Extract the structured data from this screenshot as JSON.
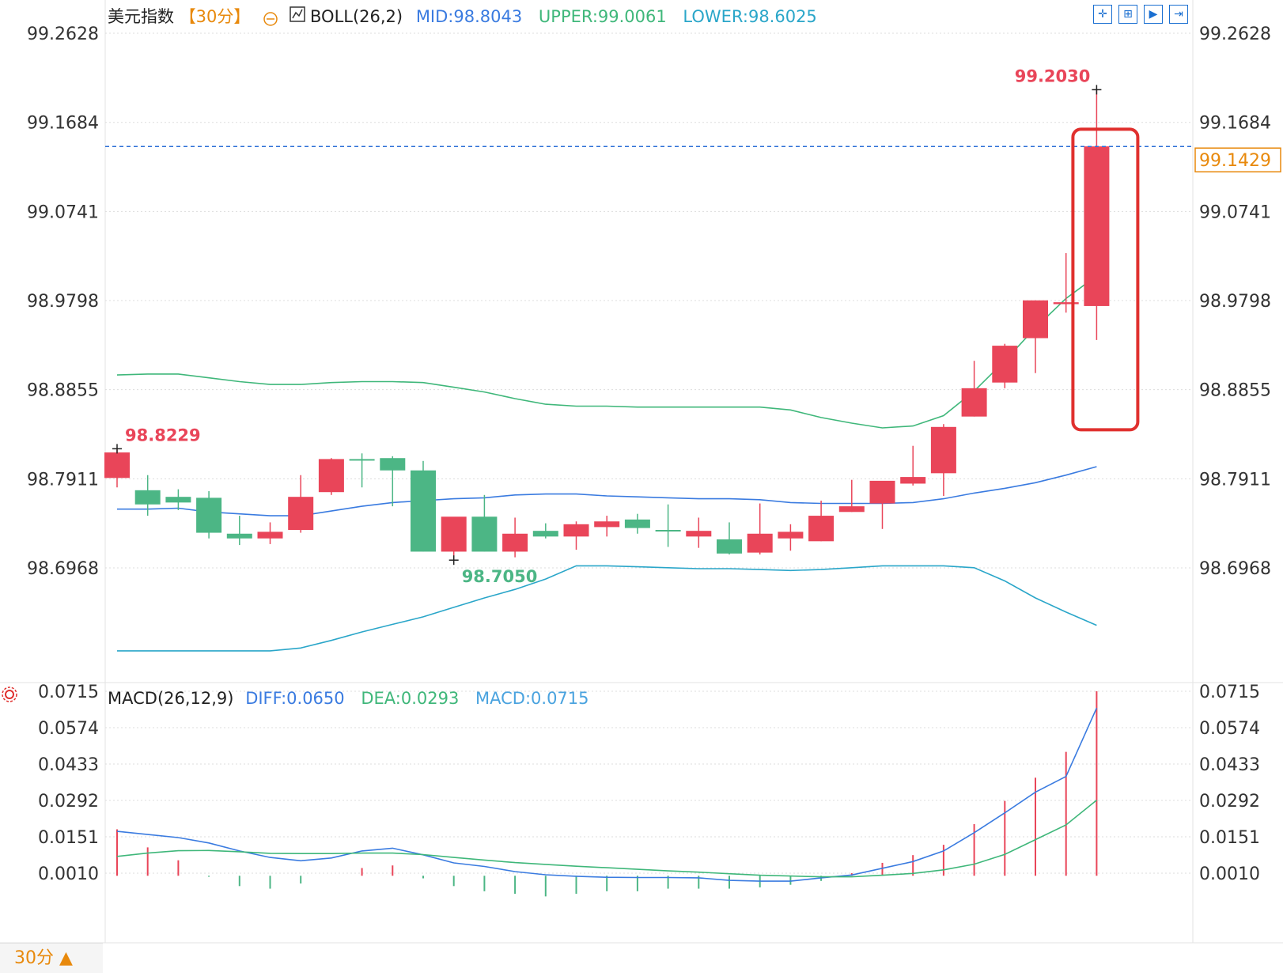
{
  "header": {
    "symbol": "美元指数",
    "period": "【30分】",
    "indicator": "BOLL(26,2)",
    "mid": "MID:98.8043",
    "upper": "UPPER:99.0061",
    "lower": "LOWER:98.6025"
  },
  "macd_header": {
    "indicator": "MACD(26,12,9)",
    "diff": "DIFF:0.0650",
    "dea": "DEA:0.0293",
    "macd": "MACD:0.0715"
  },
  "toolbar": {
    "buttons": [
      {
        "name": "crosshair-tool-icon",
        "glyph": "✛"
      },
      {
        "name": "zoom-in-tool-icon",
        "glyph": "⊞"
      },
      {
        "name": "play-tool-icon",
        "glyph": "▶"
      },
      {
        "name": "exit-tool-icon",
        "glyph": "⇥"
      }
    ]
  },
  "period_selector": {
    "label": "30分 ▲"
  },
  "price_axis": {
    "ticks": [
      "99.2628",
      "99.1684",
      "99.0741",
      "98.9798",
      "98.8855",
      "98.7911",
      "98.6968"
    ],
    "current_price": "99.1429"
  },
  "macd_axis": {
    "ticks": [
      "0.0715",
      "0.0574",
      "0.0433",
      "0.0292",
      "0.0151",
      "0.0010"
    ]
  },
  "annotations": {
    "high": "99.2030",
    "start_high": "98.8229",
    "low": "98.7050"
  },
  "colors": {
    "up": "#e94559",
    "down": "#4cb685",
    "mid": "#3a7be0",
    "upper": "#3fb77a",
    "lower": "#2aa6c9",
    "diff": "#3a7be0",
    "dea": "#3fb77a",
    "macd_label": "#4aa3df",
    "highlight": "#e0302e",
    "axis_text": "#333333",
    "period": "#e8890c"
  },
  "chart_data": [
    {
      "type": "candlestick",
      "title": "美元指数 30分",
      "indicator": "BOLL(26,2)",
      "ylim": [
        98.6,
        99.29
      ],
      "candles": [
        {
          "o": 98.792,
          "h": 98.822,
          "l": 98.782,
          "c": 98.819
        },
        {
          "o": 98.779,
          "h": 98.795,
          "l": 98.752,
          "c": 98.764
        },
        {
          "o": 98.772,
          "h": 98.78,
          "l": 98.758,
          "c": 98.766
        },
        {
          "o": 98.771,
          "h": 98.778,
          "l": 98.728,
          "c": 98.734
        },
        {
          "o": 98.733,
          "h": 98.752,
          "l": 98.721,
          "c": 98.728
        },
        {
          "o": 98.728,
          "h": 98.745,
          "l": 98.722,
          "c": 98.735
        },
        {
          "o": 98.737,
          "h": 98.795,
          "l": 98.734,
          "c": 98.772
        },
        {
          "o": 98.777,
          "h": 98.813,
          "l": 98.774,
          "c": 98.812
        },
        {
          "o": 98.812,
          "h": 98.818,
          "l": 98.782,
          "c": 98.811
        },
        {
          "o": 98.813,
          "h": 98.815,
          "l": 98.762,
          "c": 98.8
        },
        {
          "o": 98.8,
          "h": 98.81,
          "l": 98.714,
          "c": 98.714
        },
        {
          "o": 98.714,
          "h": 98.745,
          "l": 98.706,
          "c": 98.751
        },
        {
          "o": 98.751,
          "h": 98.774,
          "l": 98.714,
          "c": 98.714
        },
        {
          "o": 98.714,
          "h": 98.75,
          "l": 98.708,
          "c": 98.733
        },
        {
          "o": 98.736,
          "h": 98.744,
          "l": 98.728,
          "c": 98.73
        },
        {
          "o": 98.73,
          "h": 98.746,
          "l": 98.716,
          "c": 98.743
        },
        {
          "o": 98.74,
          "h": 98.752,
          "l": 98.73,
          "c": 98.746
        },
        {
          "o": 98.748,
          "h": 98.754,
          "l": 98.733,
          "c": 98.739
        },
        {
          "o": 98.737,
          "h": 98.764,
          "l": 98.719,
          "c": 98.736
        },
        {
          "o": 98.73,
          "h": 98.75,
          "l": 98.718,
          "c": 98.736
        },
        {
          "o": 98.727,
          "h": 98.745,
          "l": 98.711,
          "c": 98.712
        },
        {
          "o": 98.713,
          "h": 98.765,
          "l": 98.711,
          "c": 98.733
        },
        {
          "o": 98.728,
          "h": 98.743,
          "l": 98.715,
          "c": 98.735
        },
        {
          "o": 98.725,
          "h": 98.768,
          "l": 98.725,
          "c": 98.752
        },
        {
          "o": 98.756,
          "h": 98.79,
          "l": 98.756,
          "c": 98.762
        },
        {
          "o": 98.765,
          "h": 98.788,
          "l": 98.738,
          "c": 98.789
        },
        {
          "o": 98.786,
          "h": 98.826,
          "l": 98.784,
          "c": 98.793
        },
        {
          "o": 98.797,
          "h": 98.849,
          "l": 98.773,
          "c": 98.846
        },
        {
          "o": 98.857,
          "h": 98.916,
          "l": 98.857,
          "c": 98.887
        },
        {
          "o": 98.893,
          "h": 98.934,
          "l": 98.887,
          "c": 98.932
        },
        {
          "o": 98.94,
          "h": 98.98,
          "l": 98.903,
          "c": 98.98
        },
        {
          "o": 98.976,
          "h": 99.03,
          "l": 98.967,
          "c": 98.978
        },
        {
          "o": 98.974,
          "h": 99.203,
          "l": 98.938,
          "c": 99.143
        }
      ],
      "boll_mid": [
        98.759,
        98.759,
        98.76,
        98.756,
        98.754,
        98.752,
        98.752,
        98.757,
        98.762,
        98.766,
        98.768,
        98.77,
        98.771,
        98.774,
        98.775,
        98.775,
        98.773,
        98.772,
        98.771,
        98.77,
        98.77,
        98.769,
        98.766,
        98.765,
        98.765,
        98.765,
        98.766,
        98.77,
        98.776,
        98.781,
        98.787,
        98.795,
        98.804
      ],
      "boll_upper": [
        98.901,
        98.902,
        98.902,
        98.898,
        98.894,
        98.891,
        98.891,
        98.893,
        98.894,
        98.894,
        98.893,
        98.888,
        98.883,
        98.876,
        98.87,
        98.868,
        98.868,
        98.867,
        98.867,
        98.867,
        98.867,
        98.867,
        98.864,
        98.856,
        98.85,
        98.845,
        98.847,
        98.858,
        98.884,
        98.916,
        98.951,
        98.982,
        99.006
      ],
      "boll_lower": [
        98.609,
        98.609,
        98.609,
        98.609,
        98.609,
        98.609,
        98.612,
        98.62,
        98.629,
        98.637,
        98.645,
        98.655,
        98.665,
        98.674,
        98.685,
        98.699,
        98.699,
        98.698,
        98.697,
        98.696,
        98.696,
        98.695,
        98.694,
        98.695,
        98.697,
        98.699,
        98.699,
        98.699,
        98.697,
        98.683,
        98.665,
        98.65,
        98.636
      ]
    },
    {
      "type": "bar",
      "title": "MACD(26,12,9)",
      "ylim": [
        -0.0045,
        0.0725
      ],
      "diff": [
        0.0172,
        0.016,
        0.0148,
        0.0127,
        0.0096,
        0.0071,
        0.0058,
        0.0069,
        0.0096,
        0.0107,
        0.0081,
        0.005,
        0.0036,
        0.0016,
        0.0004,
        -0.0002,
        -0.0006,
        -0.0007,
        -0.0007,
        -0.0008,
        -0.0018,
        -0.0021,
        -0.0021,
        -0.0008,
        0.0003,
        0.0029,
        0.0055,
        0.0096,
        0.0167,
        0.0244,
        0.0324,
        0.0385,
        0.065
      ],
      "dea": [
        0.0075,
        0.0088,
        0.0097,
        0.0098,
        0.0093,
        0.0087,
        0.0086,
        0.0086,
        0.0088,
        0.0088,
        0.0082,
        0.0071,
        0.0061,
        0.0051,
        0.0044,
        0.0037,
        0.0031,
        0.0025,
        0.0019,
        0.0014,
        0.0008,
        0.0002,
        -0.0001,
        -0.0004,
        -0.0004,
        0.0002,
        0.0009,
        0.0023,
        0.0045,
        0.0083,
        0.014,
        0.0197,
        0.0293
      ],
      "macd": [
        0.018,
        0.011,
        0.006,
        -0.0004,
        -0.004,
        -0.005,
        -0.003,
        0.0,
        0.003,
        0.004,
        -0.001,
        -0.004,
        -0.006,
        -0.007,
        -0.008,
        -0.007,
        -0.006,
        -0.006,
        -0.005,
        -0.005,
        -0.005,
        -0.0045,
        -0.0035,
        -0.002,
        0.001,
        0.005,
        0.008,
        0.012,
        0.02,
        0.029,
        0.038,
        0.048,
        0.0715
      ]
    }
  ]
}
